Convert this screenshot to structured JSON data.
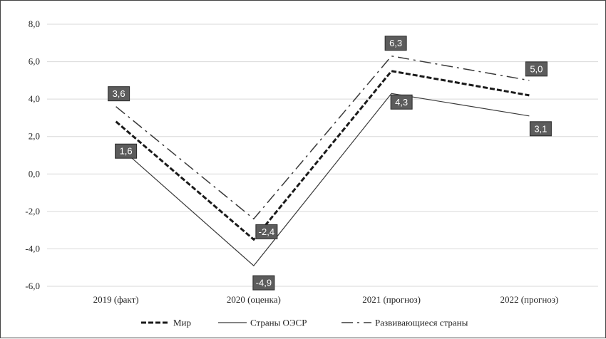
{
  "chart_data": {
    "type": "line",
    "categories": [
      "2019 (факт)",
      "2020 (оценка)",
      "2021 (прогноз)",
      "2022 (прогноз)"
    ],
    "ylim": [
      -6.0,
      8.0
    ],
    "yticks": [
      "8,0",
      "6,0",
      "4,0",
      "2,0",
      "0,0",
      "-2,0",
      "-4,0",
      "-6,0"
    ],
    "ytick_values": [
      8,
      6,
      4,
      2,
      0,
      -2,
      -4,
      -6
    ],
    "grid": true,
    "legend_position": "bottom",
    "series": [
      {
        "name": "Мир",
        "values": [
          2.8,
          -3.5,
          5.5,
          4.2
        ],
        "style": "dashed-bold",
        "color": "#1a1a1a",
        "labels": [
          null,
          null,
          null,
          null
        ]
      },
      {
        "name": "Страны ОЭСР",
        "values": [
          1.6,
          -4.9,
          4.3,
          3.1
        ],
        "style": "solid-thin",
        "color": "#3a3a3a",
        "labels": [
          "1,6",
          "-4,9",
          "4,3",
          "3,1"
        ]
      },
      {
        "name": "Развивающиеся страны",
        "values": [
          3.6,
          -2.4,
          6.3,
          5.0
        ],
        "style": "dash-dot",
        "color": "#3a3a3a",
        "labels": [
          "3,6",
          "-2,4",
          "6,3",
          "5,0"
        ]
      }
    ]
  },
  "colors": {
    "grid": "#d9d9d9",
    "label_bg": "#5c5c5c",
    "label_text": "#ffffff"
  }
}
